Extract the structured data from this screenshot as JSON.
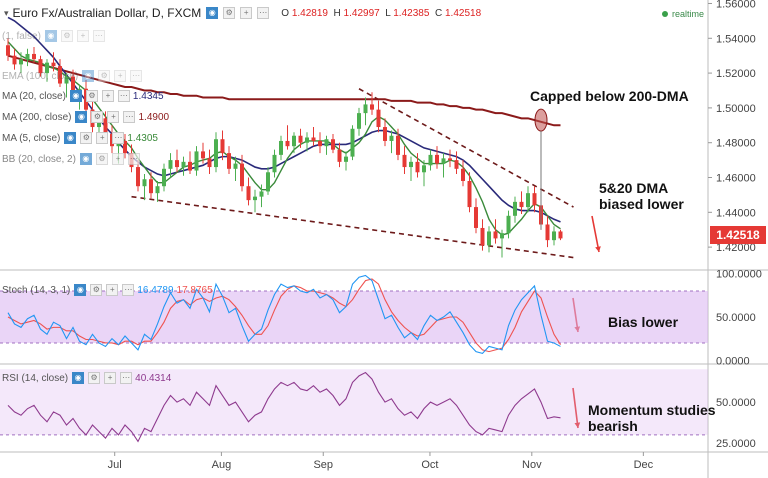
{
  "header": {
    "title": "Euro Fx/Australian Dollar, D, FXCM",
    "ohlc": [
      {
        "k": "O",
        "v": "1.42819"
      },
      {
        "k": "H",
        "v": "1.42997"
      },
      {
        "k": "L",
        "v": "1.42385"
      },
      {
        "k": "C",
        "v": "1.42518"
      }
    ],
    "realtime": "realtime"
  },
  "legend": [
    {
      "label": "MA (20, close)",
      "value": "1.4345",
      "color": "#2a2a7a"
    },
    {
      "label": "MA (200, close)",
      "value": "1.4900",
      "color": "#8b1a1a"
    },
    {
      "label": "MA (5, close)",
      "value": "1.4305",
      "color": "#3a8a3a"
    },
    {
      "label": "BB (20, close, 2)",
      "value": "",
      "color": "#888888"
    }
  ],
  "legend_faded": [
    {
      "label": "(1, false)"
    },
    {
      "label": "EMA (100, close)"
    }
  ],
  "stoch_legend": {
    "label": "Stoch (14, 3, 1)",
    "k": "16.4789",
    "d": "17.8765"
  },
  "rsi_legend": {
    "label": "RSI (14, close)",
    "value": "40.4314"
  },
  "price_tag": "1.42518",
  "annotations": {
    "capped": "Capped below 200-DMA",
    "dma_line1": "5&20 DMA",
    "dma_line2": "biased lower",
    "bias": "Bias lower",
    "mom_line1": "Momentum studies",
    "mom_line2": "bearish"
  },
  "colors": {
    "up": "#4caf50",
    "down": "#e53935",
    "ma20": "#2a2a7a",
    "ma200": "#8b1a1a",
    "ma5": "#3a8a3a",
    "trend": "#6d1a1a",
    "stoch_k": "#2196f3",
    "stoch_d": "#ef5350",
    "rsi": "#8e3a8e",
    "band": "#d9b3f0",
    "arrow": "#e53935"
  },
  "chart_data": [
    {
      "type": "candlestick",
      "x_ticks": [
        "Jul",
        "Aug",
        "Sep",
        "Oct",
        "Nov",
        "Dec"
      ],
      "y_ticks": [
        1.42,
        1.44,
        1.46,
        1.48,
        1.5,
        1.52,
        1.54,
        1.56
      ],
      "ylim": [
        1.408,
        1.562
      ],
      "candles": [
        [
          1.536,
          1.54,
          1.527,
          1.53
        ],
        [
          1.53,
          1.534,
          1.522,
          1.525
        ],
        [
          1.525,
          1.532,
          1.52,
          1.528
        ],
        [
          1.528,
          1.534,
          1.524,
          1.531
        ],
        [
          1.531,
          1.535,
          1.526,
          1.528
        ],
        [
          1.528,
          1.53,
          1.518,
          1.52
        ],
        [
          1.52,
          1.528,
          1.515,
          1.526
        ],
        [
          1.526,
          1.532,
          1.521,
          1.524
        ],
        [
          1.524,
          1.528,
          1.512,
          1.514
        ],
        [
          1.514,
          1.52,
          1.506,
          1.518
        ],
        [
          1.518,
          1.522,
          1.505,
          1.508
        ],
        [
          1.508,
          1.513,
          1.499,
          1.511
        ],
        [
          1.511,
          1.516,
          1.496,
          1.499
        ],
        [
          1.499,
          1.504,
          1.486,
          1.489
        ],
        [
          1.489,
          1.497,
          1.483,
          1.494
        ],
        [
          1.494,
          1.498,
          1.482,
          1.485
        ],
        [
          1.485,
          1.49,
          1.474,
          1.478
        ],
        [
          1.478,
          1.484,
          1.468,
          1.481
        ],
        [
          1.481,
          1.485,
          1.471,
          1.474
        ],
        [
          1.474,
          1.479,
          1.463,
          1.466
        ],
        [
          1.466,
          1.47,
          1.452,
          1.455
        ],
        [
          1.455,
          1.462,
          1.447,
          1.459
        ],
        [
          1.459,
          1.463,
          1.448,
          1.451
        ],
        [
          1.451,
          1.458,
          1.446,
          1.455
        ],
        [
          1.455,
          1.468,
          1.452,
          1.465
        ],
        [
          1.465,
          1.474,
          1.46,
          1.47
        ],
        [
          1.47,
          1.476,
          1.463,
          1.466
        ],
        [
          1.466,
          1.472,
          1.461,
          1.469
        ],
        [
          1.469,
          1.475,
          1.462,
          1.464
        ],
        [
          1.464,
          1.478,
          1.461,
          1.475
        ],
        [
          1.475,
          1.48,
          1.468,
          1.471
        ],
        [
          1.471,
          1.476,
          1.462,
          1.466
        ],
        [
          1.466,
          1.486,
          1.463,
          1.482
        ],
        [
          1.482,
          1.487,
          1.47,
          1.474
        ],
        [
          1.474,
          1.478,
          1.462,
          1.465
        ],
        [
          1.465,
          1.472,
          1.458,
          1.468
        ],
        [
          1.468,
          1.473,
          1.452,
          1.455
        ],
        [
          1.455,
          1.46,
          1.444,
          1.447
        ],
        [
          1.447,
          1.453,
          1.44,
          1.449
        ],
        [
          1.449,
          1.456,
          1.443,
          1.452
        ],
        [
          1.452,
          1.466,
          1.45,
          1.463
        ],
        [
          1.463,
          1.476,
          1.46,
          1.473
        ],
        [
          1.473,
          1.484,
          1.47,
          1.481
        ],
        [
          1.481,
          1.49,
          1.476,
          1.478
        ],
        [
          1.478,
          1.486,
          1.474,
          1.484
        ],
        [
          1.484,
          1.488,
          1.477,
          1.48
        ],
        [
          1.48,
          1.486,
          1.475,
          1.483
        ],
        [
          1.483,
          1.489,
          1.478,
          1.481
        ],
        [
          1.481,
          1.486,
          1.474,
          1.478
        ],
        [
          1.478,
          1.484,
          1.473,
          1.482
        ],
        [
          1.482,
          1.485,
          1.474,
          1.476
        ],
        [
          1.476,
          1.48,
          1.466,
          1.469
        ],
        [
          1.469,
          1.475,
          1.464,
          1.472
        ],
        [
          1.472,
          1.49,
          1.47,
          1.488
        ],
        [
          1.488,
          1.5,
          1.484,
          1.497
        ],
        [
          1.497,
          1.506,
          1.49,
          1.502
        ],
        [
          1.502,
          1.509,
          1.496,
          1.499
        ],
        [
          1.499,
          1.504,
          1.486,
          1.489
        ],
        [
          1.489,
          1.494,
          1.478,
          1.481
        ],
        [
          1.481,
          1.487,
          1.474,
          1.484
        ],
        [
          1.484,
          1.488,
          1.47,
          1.473
        ],
        [
          1.473,
          1.478,
          1.462,
          1.466
        ],
        [
          1.466,
          1.472,
          1.458,
          1.469
        ],
        [
          1.469,
          1.474,
          1.46,
          1.463
        ],
        [
          1.463,
          1.47,
          1.455,
          1.467
        ],
        [
          1.467,
          1.476,
          1.464,
          1.473
        ],
        [
          1.473,
          1.478,
          1.465,
          1.468
        ],
        [
          1.468,
          1.474,
          1.46,
          1.471
        ],
        [
          1.471,
          1.476,
          1.466,
          1.47
        ],
        [
          1.47,
          1.475,
          1.462,
          1.465
        ],
        [
          1.465,
          1.47,
          1.455,
          1.458
        ],
        [
          1.458,
          1.463,
          1.44,
          1.443
        ],
        [
          1.443,
          1.448,
          1.428,
          1.431
        ],
        [
          1.431,
          1.436,
          1.418,
          1.421
        ],
        [
          1.421,
          1.432,
          1.417,
          1.429
        ],
        [
          1.429,
          1.436,
          1.422,
          1.425
        ],
        [
          1.425,
          1.43,
          1.414,
          1.428
        ],
        [
          1.428,
          1.441,
          1.425,
          1.438
        ],
        [
          1.438,
          1.449,
          1.434,
          1.446
        ],
        [
          1.446,
          1.452,
          1.439,
          1.443
        ],
        [
          1.443,
          1.455,
          1.44,
          1.451
        ],
        [
          1.451,
          1.455,
          1.44,
          1.444
        ],
        [
          1.444,
          1.448,
          1.43,
          1.433
        ],
        [
          1.433,
          1.438,
          1.42,
          1.424
        ],
        [
          1.424,
          1.432,
          1.421,
          1.429
        ],
        [
          1.429,
          1.43,
          1.424,
          1.425
        ]
      ],
      "ma20": [
        1.552,
        1.55,
        1.547,
        1.544,
        1.541,
        1.537,
        1.533,
        1.529,
        1.524,
        1.519,
        1.514,
        1.509,
        1.504,
        1.499,
        1.494,
        1.489,
        1.485,
        1.48,
        1.476,
        1.472,
        1.469,
        1.466,
        1.464,
        1.462,
        1.461,
        1.462,
        1.463,
        1.464,
        1.465,
        1.466,
        1.467,
        1.469,
        1.471,
        1.472,
        1.472,
        1.471,
        1.47,
        1.468,
        1.466,
        1.465,
        1.465,
        1.466,
        1.468,
        1.47,
        1.472,
        1.474,
        1.476,
        1.478,
        1.479,
        1.479,
        1.479,
        1.479,
        1.479,
        1.48,
        1.482,
        1.484,
        1.486,
        1.487,
        1.487,
        1.486,
        1.485,
        1.483,
        1.481,
        1.479,
        1.477,
        1.476,
        1.475,
        1.474,
        1.473,
        1.472,
        1.47,
        1.467,
        1.463,
        1.459,
        1.455,
        1.451,
        1.447,
        1.444,
        1.442,
        1.441,
        1.441,
        1.441,
        1.44,
        1.438,
        1.436,
        1.4345
      ],
      "ma200": [
        1.53,
        1.529,
        1.528,
        1.527,
        1.526,
        1.525,
        1.524,
        1.523,
        1.522,
        1.521,
        1.52,
        1.519,
        1.518,
        1.517,
        1.516,
        1.515,
        1.514,
        1.513,
        1.512,
        1.512,
        1.511,
        1.51,
        1.51,
        1.509,
        1.509,
        1.508,
        1.508,
        1.507,
        1.507,
        1.507,
        1.506,
        1.506,
        1.506,
        1.506,
        1.505,
        1.505,
        1.505,
        1.505,
        1.505,
        1.505,
        1.505,
        1.505,
        1.505,
        1.505,
        1.505,
        1.505,
        1.505,
        1.505,
        1.505,
        1.505,
        1.505,
        1.505,
        1.505,
        1.505,
        1.505,
        1.505,
        1.505,
        1.505,
        1.505,
        1.504,
        1.504,
        1.504,
        1.504,
        1.503,
        1.503,
        1.503,
        1.502,
        1.502,
        1.501,
        1.501,
        1.5,
        1.5,
        1.499,
        1.499,
        1.498,
        1.497,
        1.497,
        1.496,
        1.495,
        1.494,
        1.494,
        1.493,
        1.492,
        1.491,
        1.49,
        1.49
      ],
      "ma5": [
        1.538,
        1.534,
        1.53,
        1.528,
        1.527,
        1.526,
        1.524,
        1.523,
        1.521,
        1.518,
        1.516,
        1.513,
        1.51,
        1.505,
        1.5,
        1.495,
        1.49,
        1.485,
        1.481,
        1.477,
        1.471,
        1.466,
        1.461,
        1.457,
        1.457,
        1.46,
        1.463,
        1.466,
        1.467,
        1.469,
        1.47,
        1.471,
        1.474,
        1.475,
        1.472,
        1.47,
        1.467,
        1.462,
        1.457,
        1.453,
        1.453,
        1.457,
        1.464,
        1.471,
        1.476,
        1.479,
        1.481,
        1.481,
        1.481,
        1.481,
        1.479,
        1.476,
        1.474,
        1.477,
        1.48,
        1.485,
        1.492,
        1.495,
        1.493,
        1.489,
        1.485,
        1.479,
        1.474,
        1.471,
        1.468,
        1.468,
        1.468,
        1.468,
        1.47,
        1.469,
        1.466,
        1.461,
        1.454,
        1.446,
        1.436,
        1.43,
        1.427,
        1.428,
        1.432,
        1.436,
        1.441,
        1.445,
        1.443,
        1.438,
        1.433,
        1.4305
      ],
      "trend_upper": [
        [
          1.511,
          56
        ],
        [
          1.443,
          87
        ]
      ],
      "trend_lower": [
        [
          1.449,
          0
        ],
        [
          1.412,
          87
        ]
      ]
    },
    {
      "type": "line",
      "name": "Stoch",
      "ylim": [
        -2,
        102
      ],
      "y_ticks": [
        0,
        50,
        100
      ],
      "band": [
        20,
        80
      ],
      "k": [
        55,
        42,
        38,
        48,
        52,
        36,
        30,
        44,
        40,
        25,
        38,
        22,
        18,
        30,
        20,
        16,
        25,
        18,
        28,
        20,
        12,
        30,
        24,
        42,
        62,
        78,
        66,
        70,
        60,
        82,
        72,
        56,
        88,
        74,
        55,
        60,
        40,
        22,
        30,
        36,
        58,
        76,
        88,
        84,
        86,
        80,
        78,
        82,
        72,
        76,
        70,
        55,
        62,
        88,
        96,
        98,
        92,
        70,
        48,
        52,
        38,
        26,
        32,
        24,
        40,
        52,
        46,
        50,
        56,
        44,
        32,
        18,
        10,
        8,
        16,
        14,
        12,
        40,
        58,
        70,
        78,
        86,
        52,
        22,
        20,
        16
      ],
      "d": [
        50,
        46,
        42,
        44,
        46,
        42,
        36,
        38,
        38,
        34,
        34,
        28,
        24,
        24,
        22,
        20,
        20,
        18,
        22,
        22,
        18,
        22,
        22,
        32,
        44,
        60,
        68,
        70,
        64,
        70,
        72,
        68,
        72,
        74,
        70,
        62,
        52,
        40,
        30,
        30,
        40,
        58,
        74,
        82,
        86,
        84,
        80,
        80,
        78,
        76,
        72,
        66,
        62,
        70,
        82,
        92,
        94,
        88,
        70,
        56,
        46,
        38,
        32,
        28,
        30,
        38,
        46,
        48,
        50,
        50,
        44,
        32,
        20,
        12,
        10,
        12,
        14,
        24,
        38,
        56,
        68,
        80,
        72,
        50,
        30,
        18
      ]
    },
    {
      "type": "line",
      "name": "RSI",
      "ylim": [
        22,
        72
      ],
      "y_ticks": [
        25,
        50
      ],
      "band": [
        30,
        70
      ],
      "values": [
        48,
        44,
        42,
        46,
        48,
        42,
        38,
        44,
        42,
        36,
        40,
        34,
        30,
        36,
        32,
        28,
        34,
        30,
        36,
        32,
        26,
        34,
        32,
        40,
        48,
        54,
        50,
        52,
        48,
        56,
        52,
        48,
        60,
        54,
        48,
        50,
        44,
        38,
        42,
        44,
        52,
        58,
        62,
        60,
        62,
        58,
        57,
        60,
        56,
        58,
        54,
        48,
        52,
        62,
        66,
        68,
        64,
        56,
        50,
        52,
        46,
        42,
        44,
        40,
        46,
        50,
        48,
        50,
        52,
        48,
        42,
        36,
        32,
        30,
        34,
        33,
        32,
        42,
        48,
        52,
        55,
        58,
        50,
        40,
        41,
        40.4
      ]
    }
  ]
}
